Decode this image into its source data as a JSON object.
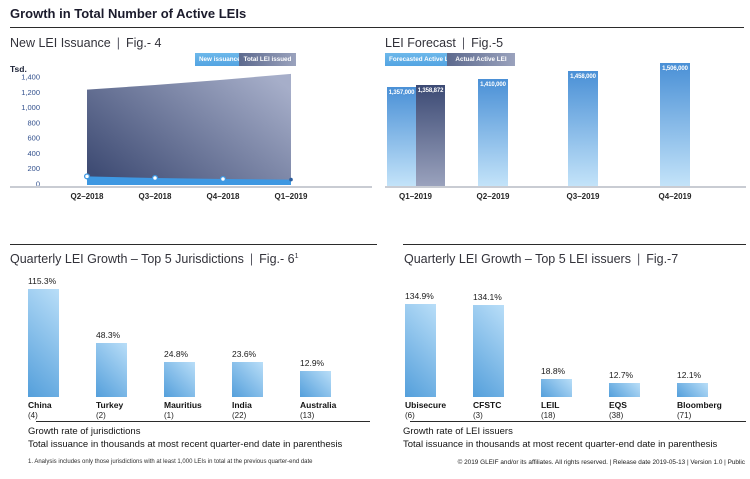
{
  "page": {
    "title": "Growth in Total Number of Active LEIs",
    "footer": "© 2019 GLEIF and/or its affiliates. All rights reserved.  |  Release date 2019-05-13  |  Version 1.0  |  Public"
  },
  "colors": {
    "accent_blue": "#4a9ade",
    "bar_gradient_dark": "#4a90d6",
    "bar_gradient_light": "#bcdff8",
    "navy_dark": "#3f4c74",
    "navy_light": "#a6aec9",
    "band_blue": "#3e98e2",
    "axis_tick_blue": "#33518e",
    "baseline_gray": "#c9ccd3",
    "rule_dark": "#2b2b2b"
  },
  "chart_data": [
    {
      "id": "fig4",
      "type": "area",
      "title": "New LEI Issuance",
      "fig_label": "Fig.- 4",
      "y_unit": "Tsd.",
      "legend_position": "top-right",
      "categories": [
        "Q2–2018",
        "Q3–2018",
        "Q4–2018",
        "Q1–2019"
      ],
      "series": [
        {
          "name": "New issuance",
          "values": [
            100,
            78,
            66,
            58
          ]
        },
        {
          "name": "Total LEI issued",
          "values": [
            1235,
            1295,
            1365,
            1440
          ]
        }
      ],
      "ylim": [
        0,
        1400
      ],
      "y_ticks": [
        "0",
        "200",
        "400",
        "600",
        "800",
        "1,000",
        "1,200",
        "1,400"
      ],
      "grid": false
    },
    {
      "id": "fig5",
      "type": "bar",
      "title": "LEI Forecast",
      "fig_label": "Fig.-5",
      "legend_position": "top-left",
      "categories": [
        "Q1–2019",
        "Q2–2019",
        "Q3–2019",
        "Q4–2019"
      ],
      "series": [
        {
          "name": "Forecasted Active LEI",
          "values": [
            1357000,
            1410000,
            1458000,
            1506000
          ],
          "value_labels": [
            "1,357,000",
            "1,410,000",
            "1,458,000",
            "1,506,000"
          ]
        },
        {
          "name": "Actual Active LEI",
          "values": [
            1358872
          ],
          "value_labels": [
            "1,358,872"
          ]
        }
      ]
    },
    {
      "id": "fig6",
      "type": "bar",
      "title": "Quarterly LEI Growth – Top 5 Jurisdictions",
      "fig_label": "Fig.- 6",
      "fig_superscript": "1",
      "categories": [
        "China",
        "Turkey",
        "Mauritius",
        "India",
        "Australia"
      ],
      "category_sub_labels": [
        "(4)",
        "(2)",
        "(1)",
        "(22)",
        "(13)"
      ],
      "values": [
        115.3,
        48.3,
        24.8,
        23.6,
        12.9
      ],
      "value_labels": [
        "115.3%",
        "48.3%",
        "24.8%",
        "23.6%",
        "12.9%"
      ],
      "captions": [
        "Growth rate of jurisdictions",
        "Total issuance in thousands at most recent quarter-end date in parenthesis"
      ],
      "footnote": "1. Analysis includes only those jurisdictions with at least 1,000 LEIs in total at the previous quarter-end date"
    },
    {
      "id": "fig7",
      "type": "bar",
      "title": "Quarterly LEI Growth – Top 5 LEI issuers",
      "fig_label": "Fig.-7",
      "categories": [
        "Ubisecure",
        "CFSTC",
        "LEIL",
        "EQS",
        "Bloomberg"
      ],
      "category_sub_labels": [
        "(6)",
        "(3)",
        "(18)",
        "(38)",
        "(71)"
      ],
      "values": [
        134.9,
        134.1,
        18.8,
        12.7,
        12.1
      ],
      "value_labels": [
        "134.9%",
        "134.1%",
        "18.8%",
        "12.7%",
        "12.1%"
      ],
      "captions": [
        "Growth rate of LEI issuers",
        "Total issuance in thousands at most recent quarter-end date in parenthesis"
      ]
    }
  ]
}
